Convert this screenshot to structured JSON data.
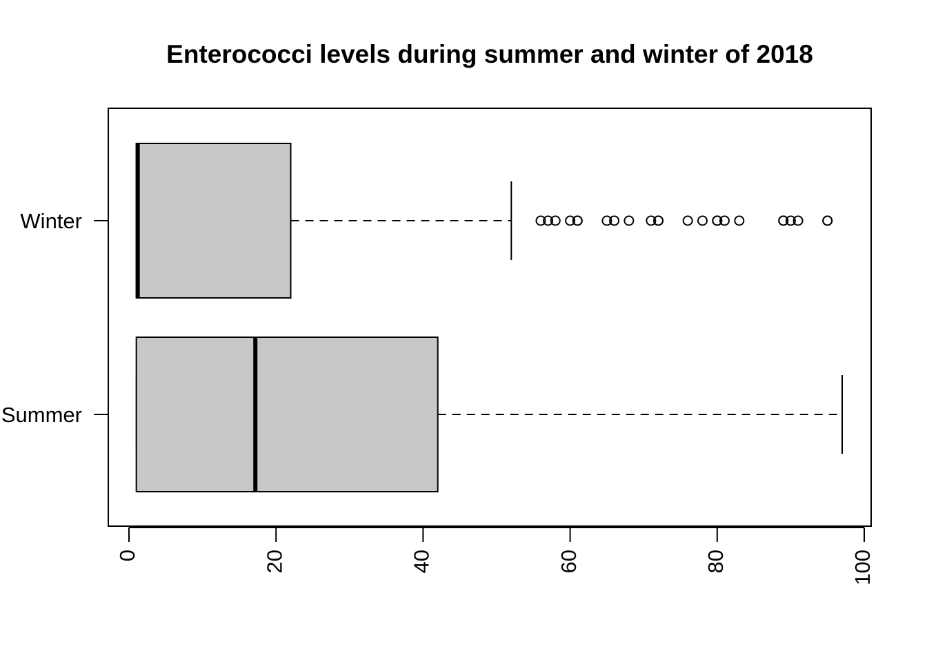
{
  "chart_data": {
    "type": "boxplot",
    "title": "Enterococci levels during summer and winter of 2018",
    "xlabel": "",
    "ylabel": "",
    "orientation": "horizontal",
    "xlim": [
      0,
      100
    ],
    "x_ticks": [
      "0",
      "20",
      "40",
      "60",
      "80",
      "100"
    ],
    "x_tick_values": [
      0,
      20,
      40,
      60,
      80,
      100
    ],
    "box_fill": "#c8c8c8",
    "grid": false,
    "groups": [
      {
        "label": "Summer",
        "whisker_low": 1,
        "q1": 1,
        "median": 17,
        "q3": 42,
        "whisker_high": 97,
        "outliers": []
      },
      {
        "label": "Winter",
        "whisker_low": 1,
        "q1": 1,
        "median": 1,
        "q3": 22,
        "whisker_high": 52,
        "outliers": [
          56,
          57,
          58,
          60,
          61,
          61,
          65,
          66,
          68,
          71,
          72,
          72,
          76,
          78,
          80,
          80,
          81,
          83,
          89,
          89,
          90,
          91,
          95,
          95
        ]
      }
    ]
  }
}
